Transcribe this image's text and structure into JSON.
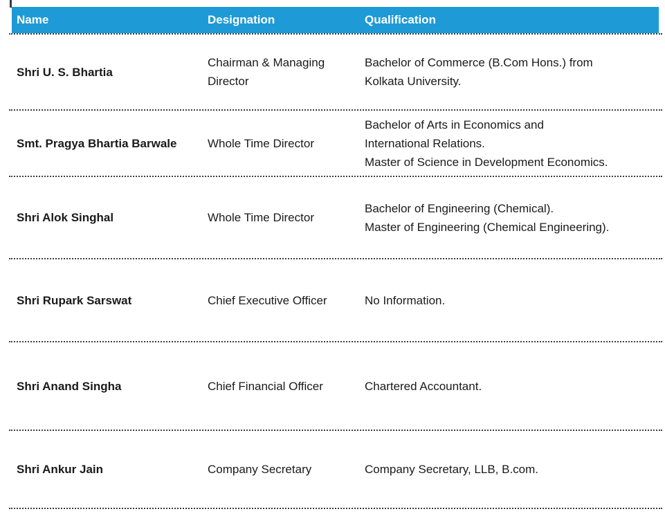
{
  "theme": {
    "header_bg": "#1e9ad6",
    "header_text": "#ffffff",
    "body_text": "#1a1a1a",
    "divider_color": "#3c3c3c"
  },
  "table": {
    "columns": [
      {
        "key": "name",
        "label": "Name"
      },
      {
        "key": "designation",
        "label": "Designation"
      },
      {
        "key": "qualification",
        "label": "Qualification"
      }
    ],
    "rows": [
      {
        "name": "Shri U. S. Bhartia",
        "designation": [
          "Chairman & Managing",
          "Director"
        ],
        "qualification": [
          "Bachelor of Commerce (B.Com Hons.) from",
          "Kolkata University."
        ]
      },
      {
        "name": "Smt. Pragya Bhartia Barwale",
        "designation": [
          "Whole Time Director"
        ],
        "qualification": [
          "Bachelor of Arts in Economics and",
          "International Relations.",
          "Master of Science in Development Economics."
        ]
      },
      {
        "name": "Shri Alok Singhal",
        "designation": [
          "Whole Time Director"
        ],
        "qualification": [
          "Bachelor of Engineering (Chemical).",
          "Master of Engineering (Chemical Engineering)."
        ]
      },
      {
        "name": "Shri Rupark Sarswat",
        "designation": [
          "Chief Executive Officer"
        ],
        "qualification": [
          "No Information."
        ]
      },
      {
        "name": "Shri Anand Singha",
        "designation": [
          "Chief Financial Officer"
        ],
        "qualification": [
          "Chartered Accountant."
        ]
      },
      {
        "name": "Shri Ankur Jain",
        "designation": [
          "Company Secretary"
        ],
        "qualification": [
          "Company Secretary, LLB, B.com."
        ]
      }
    ]
  }
}
